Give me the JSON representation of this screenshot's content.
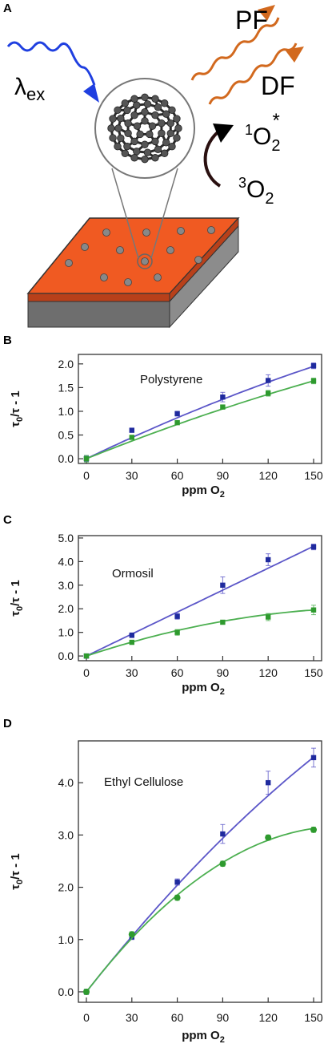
{
  "panel_a": {
    "letter": "A",
    "labels": {
      "excitation_main": "λ",
      "excitation_sub": "ex",
      "prompt_fluorescence": "PF",
      "delayed_fluorescence": "DF",
      "singlet_oxygen_sup": "1",
      "singlet_oxygen_main": "O",
      "singlet_oxygen_sub": "2",
      "singlet_oxygen_star": "*",
      "triplet_oxygen_sup": "3",
      "triplet_oxygen_main": "O",
      "triplet_oxygen_sub": "2"
    },
    "colors": {
      "excitation_arrow": "#1f3fe0",
      "emission_arrows": "#d2691e",
      "film_top": "#f05a22",
      "film_side": "#b8401a",
      "substrate_side": "#8c8c8c",
      "substrate_front": "#6e6e6e",
      "fullerene": "#555555",
      "dot": "#888888"
    }
  },
  "chart_data": [
    {
      "panel": "B",
      "type": "scatter",
      "title": "Polystyrene",
      "xlabel_main": "ppm O",
      "xlabel_sub": "2",
      "ylabel_tau": "τ",
      "ylabel_sub": "0",
      "ylabel_rest": "/τ - 1",
      "x": [
        0,
        30,
        60,
        90,
        120,
        150
      ],
      "xlim": [
        0,
        150
      ],
      "ylim": [
        -0.1,
        2.2
      ],
      "xticks": [
        "0",
        "30",
        "60",
        "90",
        "120",
        "150"
      ],
      "yticks": [
        {
          "v": 0.0,
          "t": "0.0"
        },
        {
          "v": 0.5,
          "t": "0.5"
        },
        {
          "v": 1.0,
          "t": "1.0"
        },
        {
          "v": 1.5,
          "t": "1.5"
        },
        {
          "v": 2.0,
          "t": "2.0"
        }
      ],
      "series": [
        {
          "color": "#1f2a9e",
          "fit_color": "#5b56c8",
          "fit": [
            0,
            0.0153,
            -1.54e-05
          ],
          "values": [
            0.0,
            0.6,
            0.95,
            1.3,
            1.65,
            1.96
          ],
          "errors": [
            0.06,
            0.03,
            0.05,
            0.1,
            0.12,
            0.06
          ]
        },
        {
          "color": "#2e9a2e",
          "fit_color": "#4caf50",
          "fit": [
            0,
            0.0128,
            -1.24e-05
          ],
          "values": [
            0.0,
            0.45,
            0.76,
            1.09,
            1.38,
            1.64
          ],
          "errors": [
            0.07,
            0.03,
            0.03,
            0.04,
            0.06,
            0.06
          ]
        }
      ]
    },
    {
      "panel": "C",
      "type": "scatter",
      "title": "Ormosil",
      "xlabel_main": "ppm O",
      "xlabel_sub": "2",
      "ylabel_tau": "τ",
      "ylabel_sub": "0",
      "ylabel_rest": "/τ - 1",
      "x": [
        0,
        30,
        60,
        90,
        120,
        150
      ],
      "xlim": [
        0,
        150
      ],
      "ylim": [
        -0.2,
        5.1
      ],
      "xticks": [
        "0",
        "30",
        "60",
        "90",
        "120",
        "150"
      ],
      "yticks": [
        {
          "v": 0.0,
          "t": "0.0"
        },
        {
          "v": 1.0,
          "t": "1.0"
        },
        {
          "v": 2.0,
          "t": "2.0"
        },
        {
          "v": 3.0,
          "t": "3.0"
        },
        {
          "v": 4.0,
          "t": "4.0"
        },
        {
          "v": 5.0,
          "t": "5.0"
        }
      ],
      "series": [
        {
          "color": "#1f2a9e",
          "fit_color": "#5b56c8",
          "fit": [
            0,
            0.031,
            0.0
          ],
          "values": [
            0.0,
            0.88,
            1.68,
            3.0,
            4.08,
            4.62
          ],
          "errors": [
            0.05,
            0.1,
            0.12,
            0.35,
            0.25,
            0.12
          ]
        },
        {
          "color": "#2e9a2e",
          "fit_color": "#4caf50",
          "fit": [
            0,
            0.0213,
            -5.53e-05
          ],
          "values": [
            0.0,
            0.58,
            1.0,
            1.43,
            1.65,
            1.95
          ],
          "errors": [
            0.06,
            0.04,
            0.12,
            0.06,
            0.15,
            0.2
          ]
        }
      ]
    },
    {
      "panel": "D",
      "type": "scatter",
      "title": "Ethyl Cellulose",
      "xlabel_main": "ppm O",
      "xlabel_sub": "2",
      "ylabel_tau": "τ",
      "ylabel_sub": "0",
      "ylabel_rest": "/τ - 1",
      "x": [
        0,
        30,
        60,
        90,
        120,
        150
      ],
      "xlim": [
        0,
        150
      ],
      "ylim": [
        -0.2,
        4.8
      ],
      "xticks": [
        "0",
        "30",
        "60",
        "90",
        "120",
        "150"
      ],
      "yticks": [
        {
          "v": 0.0,
          "t": "0.0"
        },
        {
          "v": 1.0,
          "t": "1.0"
        },
        {
          "v": 2.0,
          "t": "2.0"
        },
        {
          "v": 3.0,
          "t": "3.0"
        },
        {
          "v": 4.0,
          "t": "4.0"
        }
      ],
      "series": [
        {
          "color": "#1f2a9e",
          "fit_color": "#5b56c8",
          "fit": [
            0,
            0.0367,
            -4.52e-05
          ],
          "values": [
            0.0,
            1.05,
            2.1,
            3.02,
            4.0,
            4.48
          ],
          "errors": [
            0.05,
            0.05,
            0.06,
            0.18,
            0.22,
            0.18
          ]
        },
        {
          "color": "#2e9a2e",
          "fit_color": "#4caf50",
          "fit": [
            0,
            0.0375,
            -0.0001111
          ],
          "values": [
            0.0,
            1.1,
            1.8,
            2.45,
            2.95,
            3.1
          ],
          "errors": [
            0.05,
            0.05,
            0.05,
            0.05,
            0.05,
            0.05
          ]
        }
      ]
    }
  ]
}
